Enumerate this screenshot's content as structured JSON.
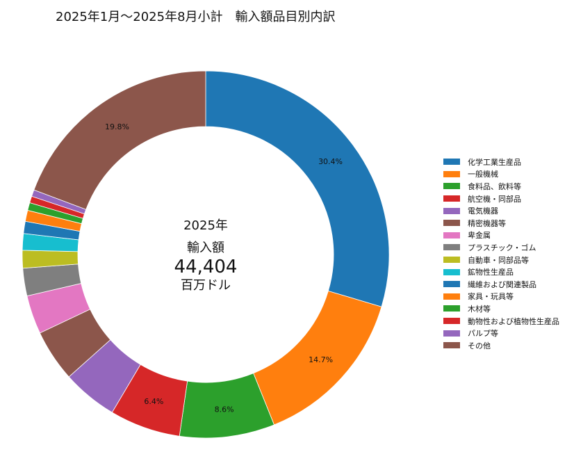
{
  "chart_data": {
    "type": "pie",
    "title": "2025年1月～2025年8月小計　輸入額品目別内訳",
    "center": {
      "year": "2025年",
      "label": "輸入額",
      "value": "44,404",
      "unit": "百万ドル"
    },
    "categories": [
      "化学工業生産品",
      "一般機械",
      "食料品、飲料等",
      "航空機・同部品",
      "電気機器",
      "精密機器等",
      "卑金属",
      "プラスチック・ゴム",
      "自動車・同部品等",
      "鉱物性生産品",
      "繊維および関連製品",
      "家具・玩具等",
      "木材等",
      "動物性および植物性生産品",
      "パルプ等",
      "その他"
    ],
    "values": [
      30.4,
      14.7,
      8.6,
      6.4,
      5.0,
      4.7,
      3.5,
      2.5,
      1.6,
      1.5,
      1.1,
      1.0,
      0.7,
      0.6,
      0.6,
      19.8
    ],
    "value_labels": [
      "30.4%",
      "14.7%",
      "8.6%",
      "6.4%",
      "",
      "",
      "",
      "",
      "",
      "",
      "",
      "",
      "",
      "",
      "",
      "19.8%"
    ],
    "colors": [
      "#1f77b4",
      "#ff7f0e",
      "#2ca02c",
      "#d62728",
      "#9467bd",
      "#8c564b",
      "#e377c2",
      "#7f7f7f",
      "#bcbd22",
      "#17becf",
      "#1f77b4",
      "#ff7f0e",
      "#2ca02c",
      "#d62728",
      "#9467bd",
      "#8c564b"
    ],
    "legend_placement": "right",
    "start_angle": "top, clockwise"
  }
}
